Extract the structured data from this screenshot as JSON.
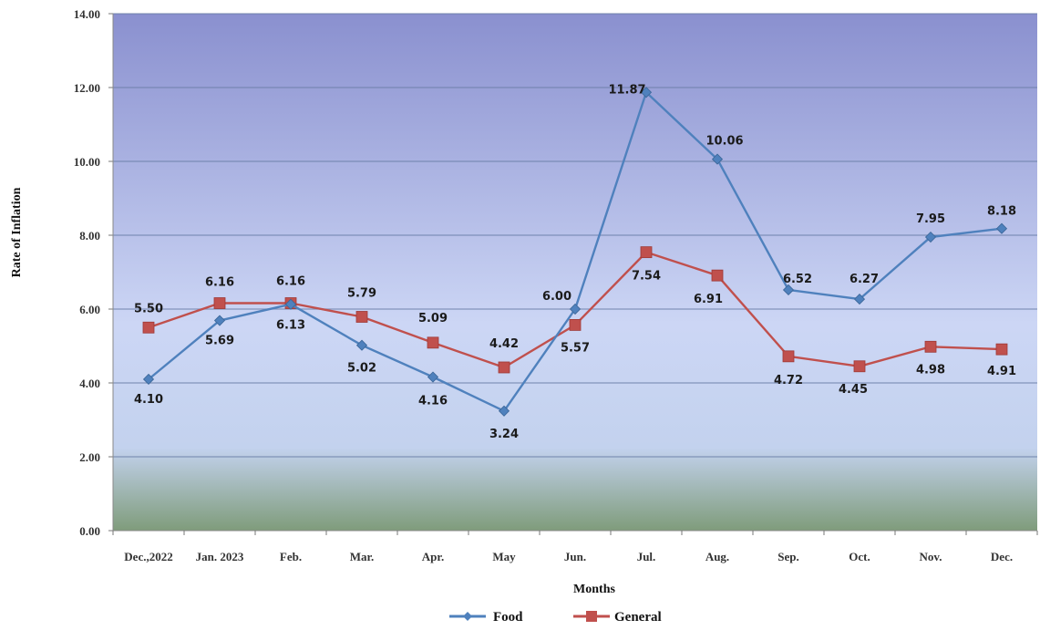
{
  "chart_data": {
    "type": "line",
    "title": "",
    "xlabel": "Months",
    "ylabel": "Rate of Inflation",
    "ylim": [
      0,
      14
    ],
    "y_ticks": [
      "0.00",
      "2.00",
      "4.00",
      "6.00",
      "8.00",
      "10.00",
      "12.00",
      "14.00"
    ],
    "categories": [
      "Dec.,2022",
      "Jan. 2023",
      "Feb.",
      "Mar.",
      "Apr.",
      "May",
      "Jun.",
      "Jul.",
      "Aug.",
      "Sep.",
      "Oct.",
      "Nov.",
      "Dec."
    ],
    "series": [
      {
        "name": "Food",
        "color": "#4f81bd",
        "marker": "diamond",
        "values": [
          4.1,
          5.69,
          6.13,
          5.02,
          4.16,
          3.24,
          6.0,
          11.87,
          10.06,
          6.52,
          6.27,
          7.95,
          8.18
        ],
        "labels": [
          "4.10",
          "5.69",
          "6.13",
          "5.02",
          "4.16",
          "3.24",
          "6.00",
          "11.87",
          "10.06",
          "6.52",
          "6.27",
          "7.95",
          "8.18"
        ]
      },
      {
        "name": "General",
        "color": "#c0504d",
        "marker": "square",
        "values": [
          5.5,
          6.16,
          6.16,
          5.79,
          5.09,
          4.42,
          5.57,
          7.54,
          6.91,
          4.72,
          4.45,
          4.98,
          4.91
        ],
        "labels": [
          "5.50",
          "6.16",
          "6.16",
          "5.79",
          "5.09",
          "4.42",
          "5.57",
          "7.54",
          "6.91",
          "4.72",
          "4.45",
          "4.98",
          "4.91"
        ]
      }
    ],
    "grid": true,
    "legend_position": "bottom",
    "background_gradient": [
      "#8a90cf",
      "#ccd6f5",
      "#c3d2ee",
      "#7f9c7b"
    ]
  }
}
